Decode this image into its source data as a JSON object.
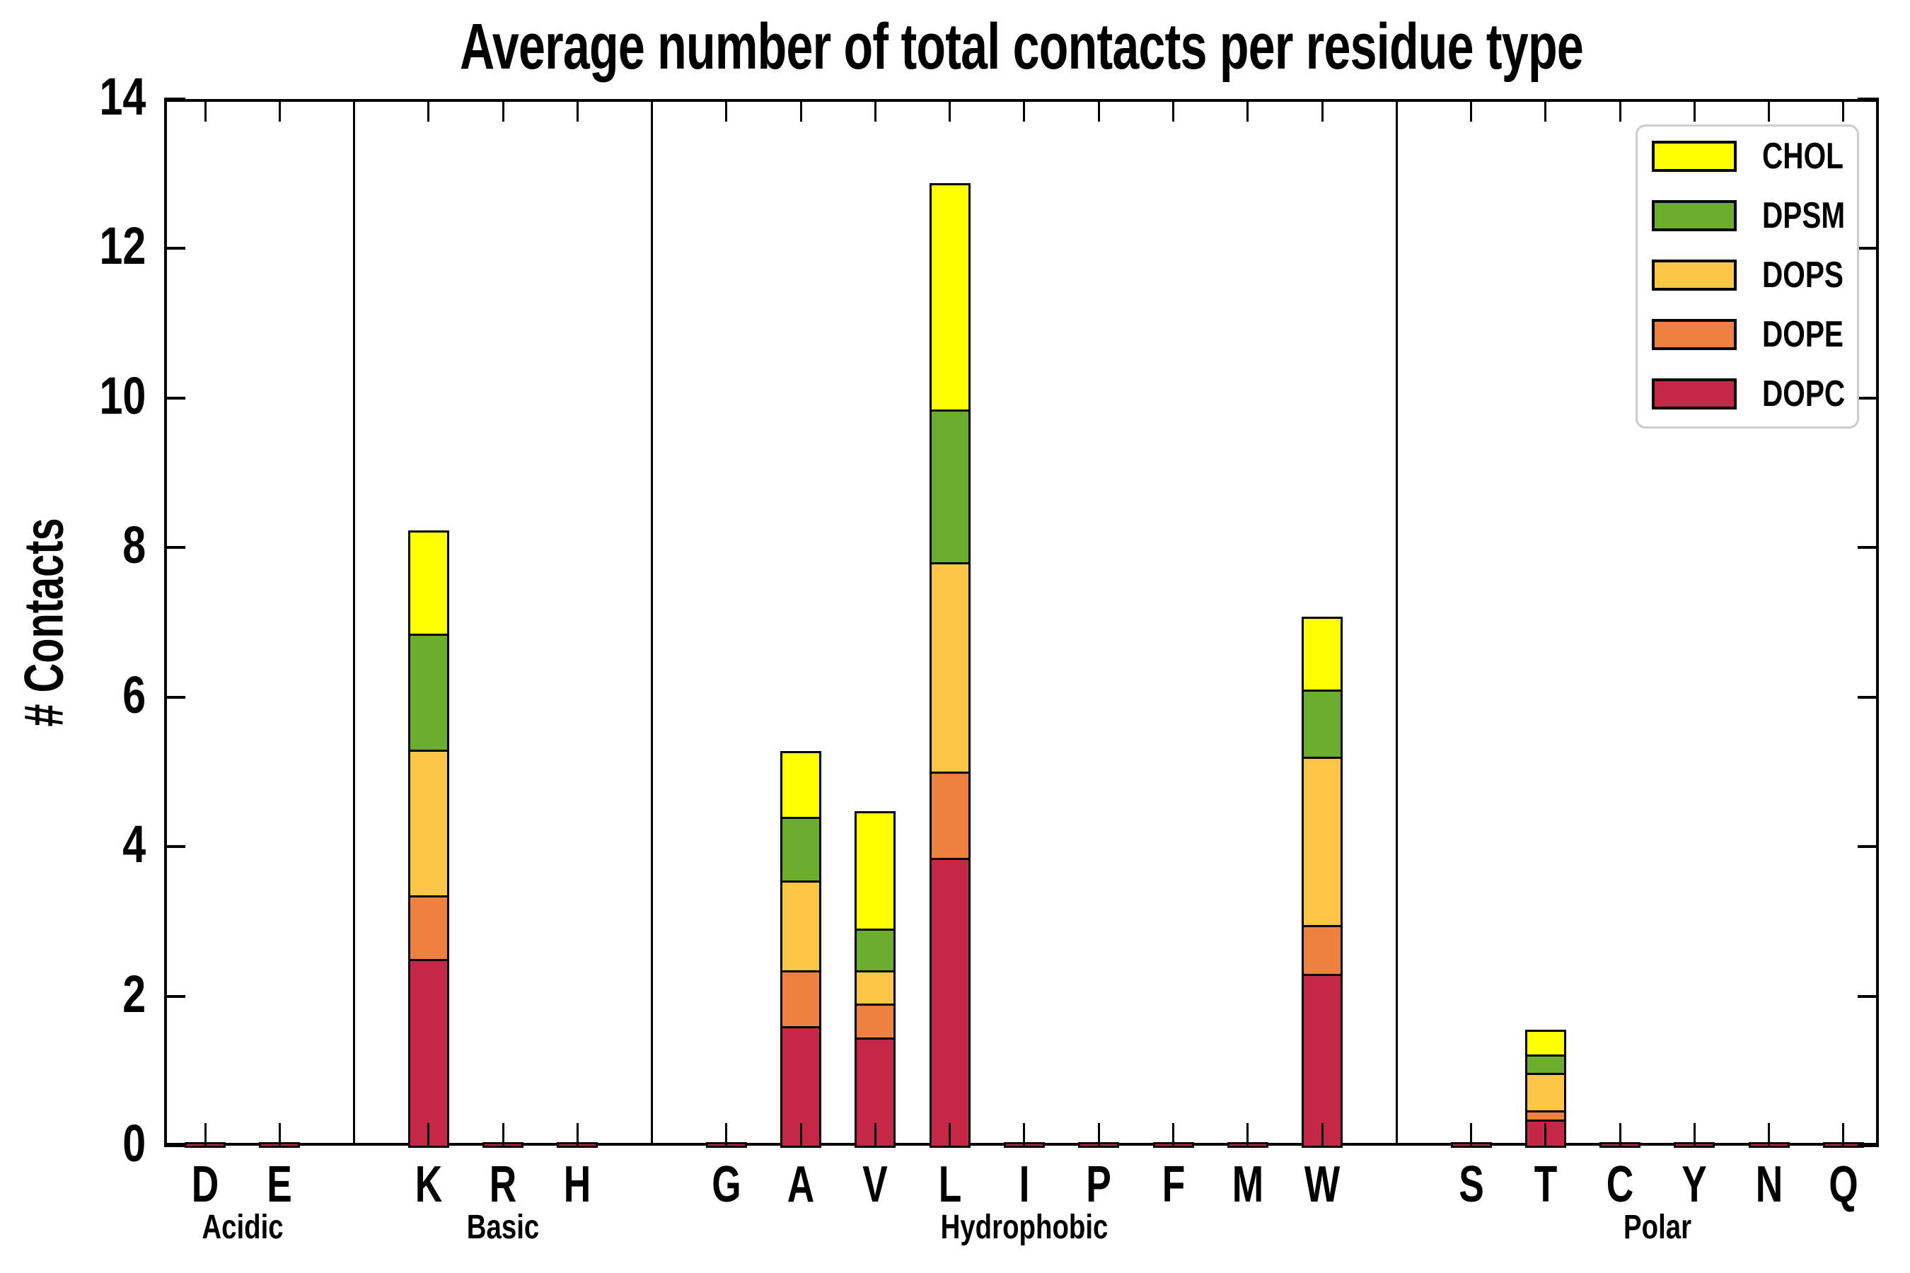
{
  "title": "Average number of total contacts per residue type",
  "chart_data": {
    "type": "bar",
    "stacked": true,
    "title": "Average number of total contacts per residue type",
    "xlabel": "",
    "ylabel": "# Contacts",
    "ylim": [
      0,
      14
    ],
    "yticks": [
      0,
      2,
      4,
      6,
      8,
      10,
      12,
      14
    ],
    "grid": false,
    "legend_position": "upper right",
    "legend_entries_top_to_bottom": [
      "CHOL",
      "DPSM",
      "DOPS",
      "DOPE",
      "DOPC"
    ],
    "series_order_bottom_to_top": [
      "DOPC",
      "DOPE",
      "DOPS",
      "DPSM",
      "CHOL"
    ],
    "series_colors": {
      "CHOL": "#FFFF00",
      "DPSM": "#6BAD2C",
      "DOPS": "#FBC545",
      "DOPE": "#EE8040",
      "DOPC": "#C52846"
    },
    "groups": [
      {
        "label": "Acidic",
        "residues": [
          "D",
          "E"
        ]
      },
      {
        "label": "Basic",
        "residues": [
          "K",
          "R",
          "H"
        ]
      },
      {
        "label": "Hydrophobic",
        "residues": [
          "G",
          "A",
          "V",
          "L",
          "I",
          "P",
          "F",
          "M",
          "W"
        ]
      },
      {
        "label": "Polar",
        "residues": [
          "S",
          "T",
          "C",
          "Y",
          "N",
          "Q"
        ]
      }
    ],
    "values": {
      "D": {
        "DOPC": 0.02,
        "DOPE": 0,
        "DOPS": 0,
        "DPSM": 0,
        "CHOL": 0
      },
      "E": {
        "DOPC": 0.02,
        "DOPE": 0,
        "DOPS": 0,
        "DPSM": 0,
        "CHOL": 0
      },
      "K": {
        "DOPC": 2.5,
        "DOPE": 0.85,
        "DOPS": 1.95,
        "DPSM": 1.55,
        "CHOL": 1.35
      },
      "R": {
        "DOPC": 0.02,
        "DOPE": 0,
        "DOPS": 0,
        "DPSM": 0,
        "CHOL": 0
      },
      "H": {
        "DOPC": 0.02,
        "DOPE": 0,
        "DOPS": 0,
        "DPSM": 0,
        "CHOL": 0
      },
      "G": {
        "DOPC": 0.02,
        "DOPE": 0,
        "DOPS": 0,
        "DPSM": 0,
        "CHOL": 0
      },
      "A": {
        "DOPC": 1.6,
        "DOPE": 0.75,
        "DOPS": 1.2,
        "DPSM": 0.85,
        "CHOL": 0.85
      },
      "V": {
        "DOPC": 1.45,
        "DOPE": 0.45,
        "DOPS": 0.45,
        "DPSM": 0.55,
        "CHOL": 1.55
      },
      "L": {
        "DOPC": 3.85,
        "DOPE": 1.15,
        "DOPS": 2.8,
        "DPSM": 2.05,
        "CHOL": 3.0
      },
      "I": {
        "DOPC": 0.02,
        "DOPE": 0,
        "DOPS": 0,
        "DPSM": 0,
        "CHOL": 0
      },
      "P": {
        "DOPC": 0.02,
        "DOPE": 0,
        "DOPS": 0,
        "DPSM": 0,
        "CHOL": 0
      },
      "F": {
        "DOPC": 0.02,
        "DOPE": 0,
        "DOPS": 0,
        "DPSM": 0,
        "CHOL": 0
      },
      "M": {
        "DOPC": 0.02,
        "DOPE": 0,
        "DOPS": 0,
        "DPSM": 0,
        "CHOL": 0
      },
      "W": {
        "DOPC": 2.3,
        "DOPE": 0.65,
        "DOPS": 2.25,
        "DPSM": 0.9,
        "CHOL": 0.95
      },
      "S": {
        "DOPC": 0.02,
        "DOPE": 0,
        "DOPS": 0,
        "DPSM": 0,
        "CHOL": 0
      },
      "T": {
        "DOPC": 0.35,
        "DOPE": 0.12,
        "DOPS": 0.5,
        "DPSM": 0.25,
        "CHOL": 0.3
      },
      "C": {
        "DOPC": 0.02,
        "DOPE": 0,
        "DOPS": 0,
        "DPSM": 0,
        "CHOL": 0
      },
      "Y": {
        "DOPC": 0.02,
        "DOPE": 0,
        "DOPS": 0,
        "DPSM": 0,
        "CHOL": 0
      },
      "N": {
        "DOPC": 0.02,
        "DOPE": 0,
        "DOPS": 0,
        "DPSM": 0,
        "CHOL": 0
      },
      "Q": {
        "DOPC": 0.02,
        "DOPE": 0,
        "DOPS": 0,
        "DPSM": 0,
        "CHOL": 0
      }
    }
  }
}
